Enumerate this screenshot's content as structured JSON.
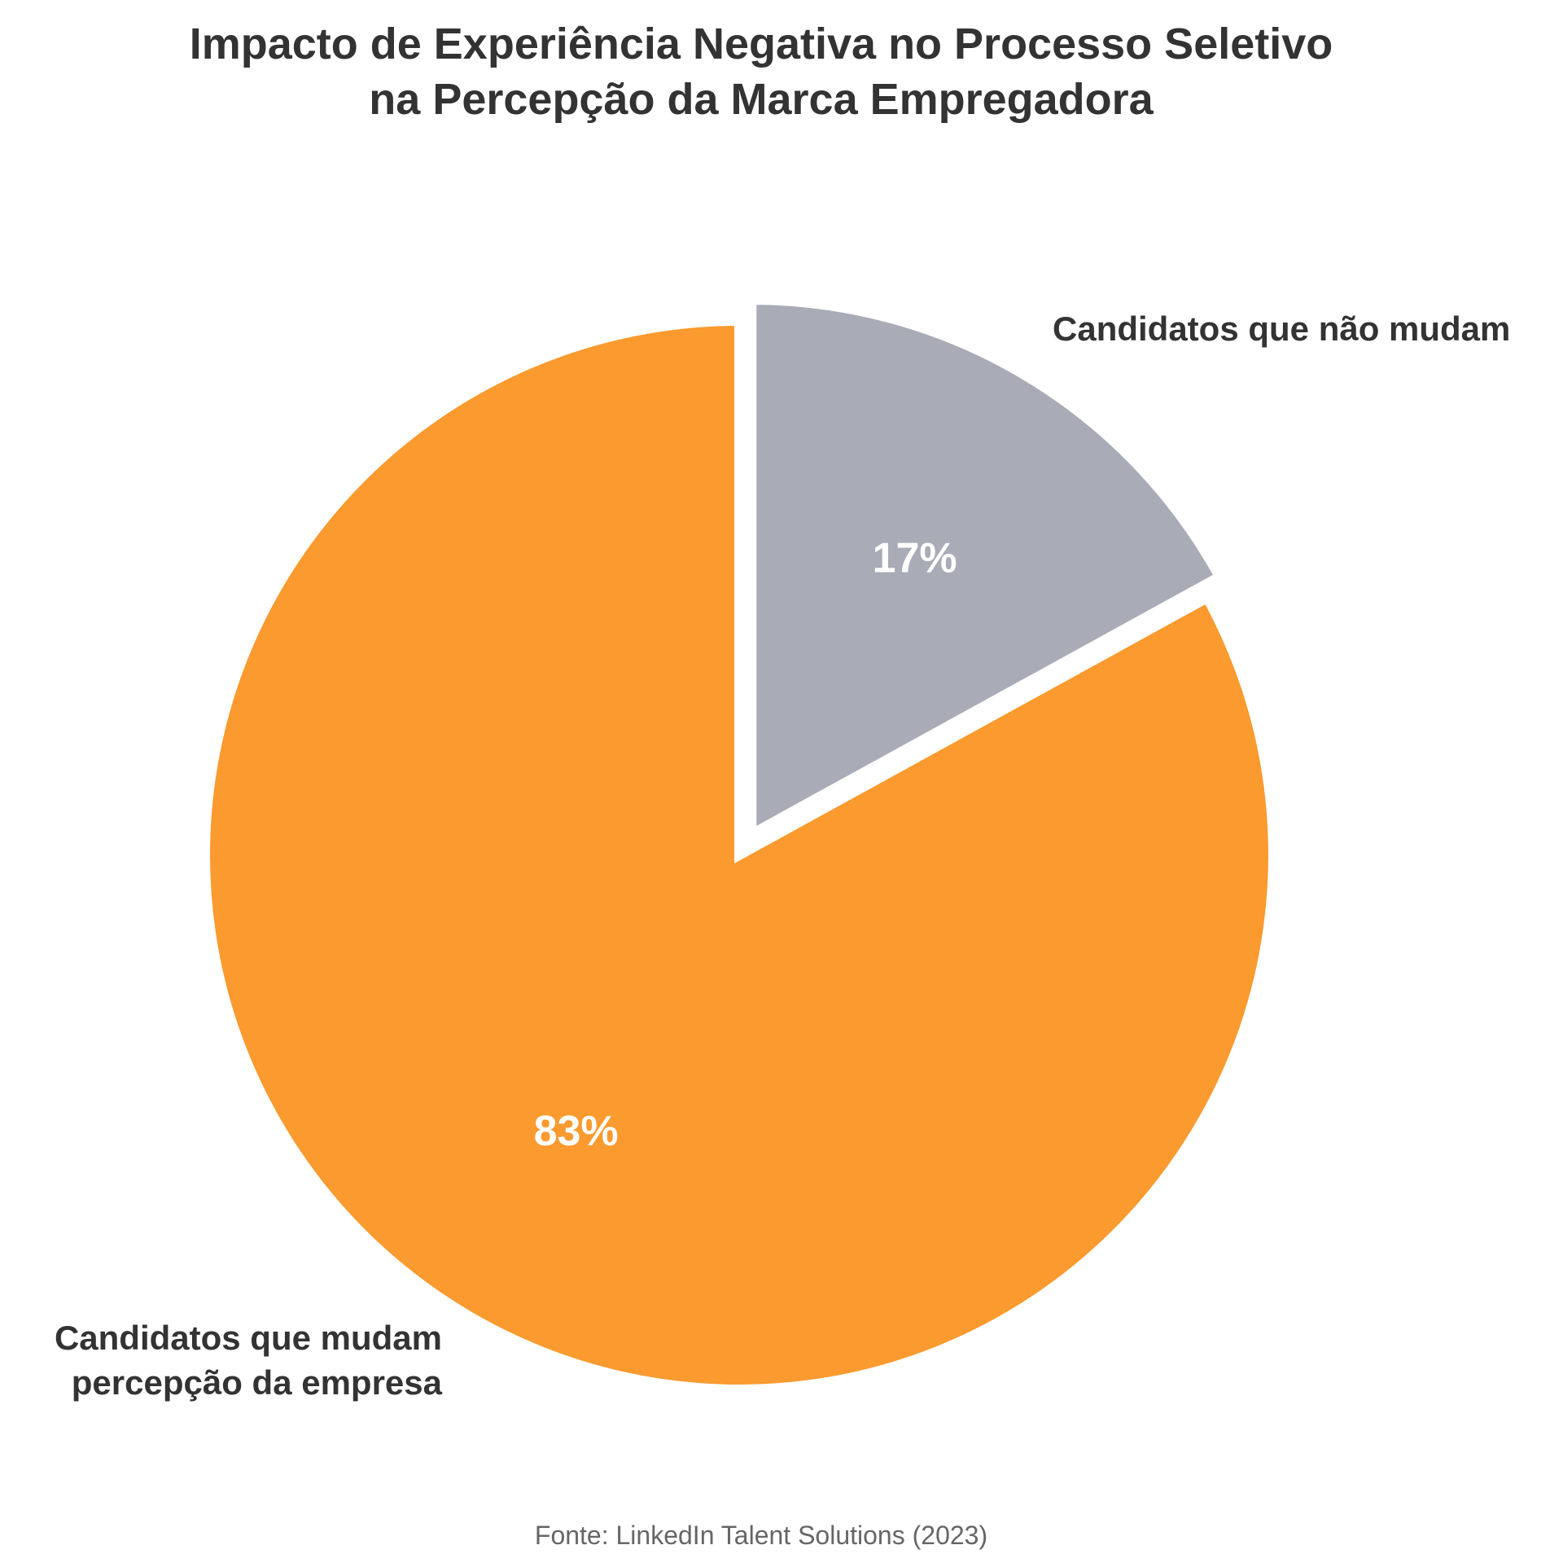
{
  "chart_data": {
    "type": "pie",
    "title": [
      "Impacto de Experiência Negativa no Processo Seletivo",
      "na Percepção da Marca Empregadora"
    ],
    "slices": [
      {
        "label": [
          "Candidatos que não mudam"
        ],
        "value": 17,
        "display": "17%",
        "color": "#a9acb6",
        "exploded": true
      },
      {
        "label": [
          "Candidatos que mudam",
          "percepção da empresa"
        ],
        "value": 83,
        "display": "83%",
        "color": "#fb9a2f",
        "exploded": false
      }
    ],
    "start_angle": "12 o'clock",
    "direction": "clockwise",
    "source": "Fonte: LinkedIn Talent Solutions (2023)"
  },
  "colors": {
    "background": "#ffffff",
    "text": "#333333",
    "source_text": "#666666",
    "percent_text": "#ffffff",
    "slice_border": "#ffffff"
  }
}
